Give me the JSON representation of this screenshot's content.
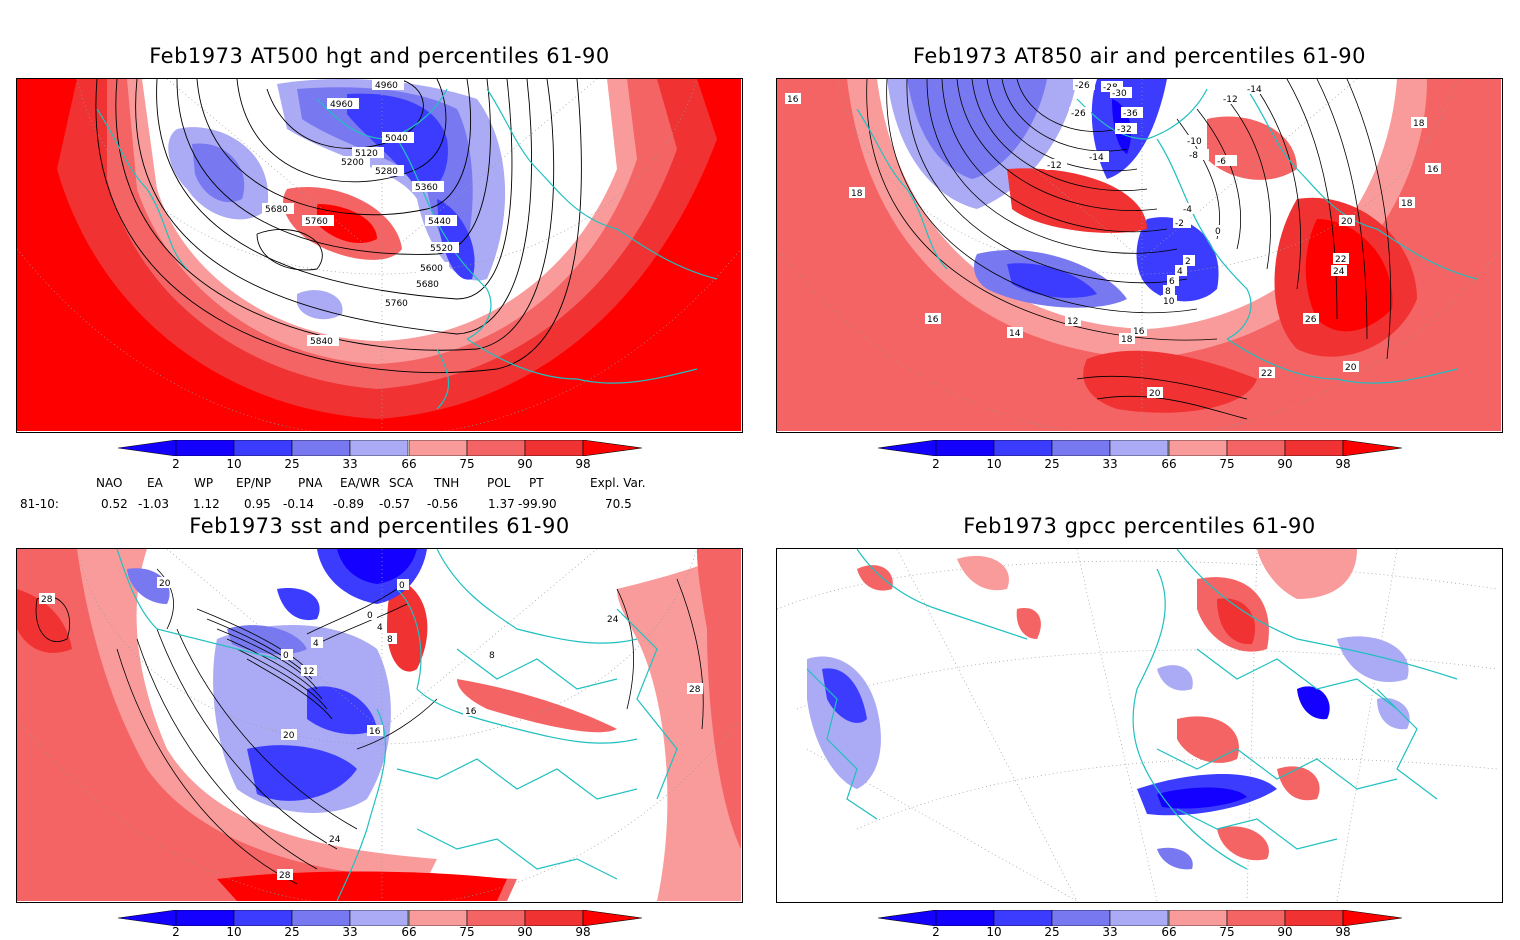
{
  "panels": [
    {
      "title": "Feb1973 AT500 hgt and percentiles 61-90",
      "contour_labels": [
        "4960",
        "4960",
        "5040",
        "5120",
        "5200",
        "5280",
        "5360",
        "5440",
        "5520",
        "5600",
        "5680",
        "5680",
        "5760",
        "5760",
        "5840"
      ]
    },
    {
      "title": "Feb1973 AT850 air and percentiles 61-90",
      "contour_labels": [
        "16",
        "-26",
        "-28",
        "-30",
        "-26",
        "-32",
        "-36",
        "-12",
        "-14",
        "-10",
        "-8",
        "-6",
        "-14",
        "-12",
        "18",
        "18",
        "16",
        "-4",
        "-2",
        "0",
        "2",
        "4",
        "6",
        "8",
        "10",
        "12",
        "14",
        "16",
        "18",
        "18",
        "20",
        "22",
        "24",
        "26",
        "22",
        "20",
        "20",
        "16",
        "16"
      ]
    },
    {
      "title": "Feb1973 sst and percentiles 61-90",
      "contour_labels": [
        "28",
        "20",
        "0",
        "0",
        "4",
        "8",
        "4",
        "0",
        "12",
        "16",
        "20",
        "16",
        "24",
        "28",
        "8",
        "24",
        "28"
      ]
    },
    {
      "title": "Feb1973 gpcc percentiles 61-90",
      "contour_labels": []
    }
  ],
  "colorbar": {
    "labels": [
      "2",
      "10",
      "25",
      "33",
      "66",
      "75",
      "90",
      "98"
    ],
    "colors": {
      "b1": "#1400ff",
      "b2": "#3c3cff",
      "b3": "#7878f0",
      "b4": "#aaaaf5",
      "white": "#ffffff",
      "r4": "#fa9b9b",
      "r3": "#f56464",
      "r2": "#f03232",
      "r1": "#ff0000"
    }
  },
  "indices": {
    "headers": [
      "NAO",
      "EA",
      "WP",
      "EP/NP",
      "PNA",
      "EA/WR",
      "SCA",
      "TNH",
      "POL",
      "PT",
      "Expl. Var."
    ],
    "row_label": "81-10:",
    "values": [
      "0.52",
      "-1.03",
      "1.12",
      "0.95",
      "-0.14",
      "-0.89",
      "-0.57",
      "-0.56",
      "1.37",
      "-99.90",
      "70.5"
    ]
  },
  "map_colors": {
    "coast": "#20c0c0",
    "contour": "#000000",
    "grid": "#9a9a9a"
  }
}
